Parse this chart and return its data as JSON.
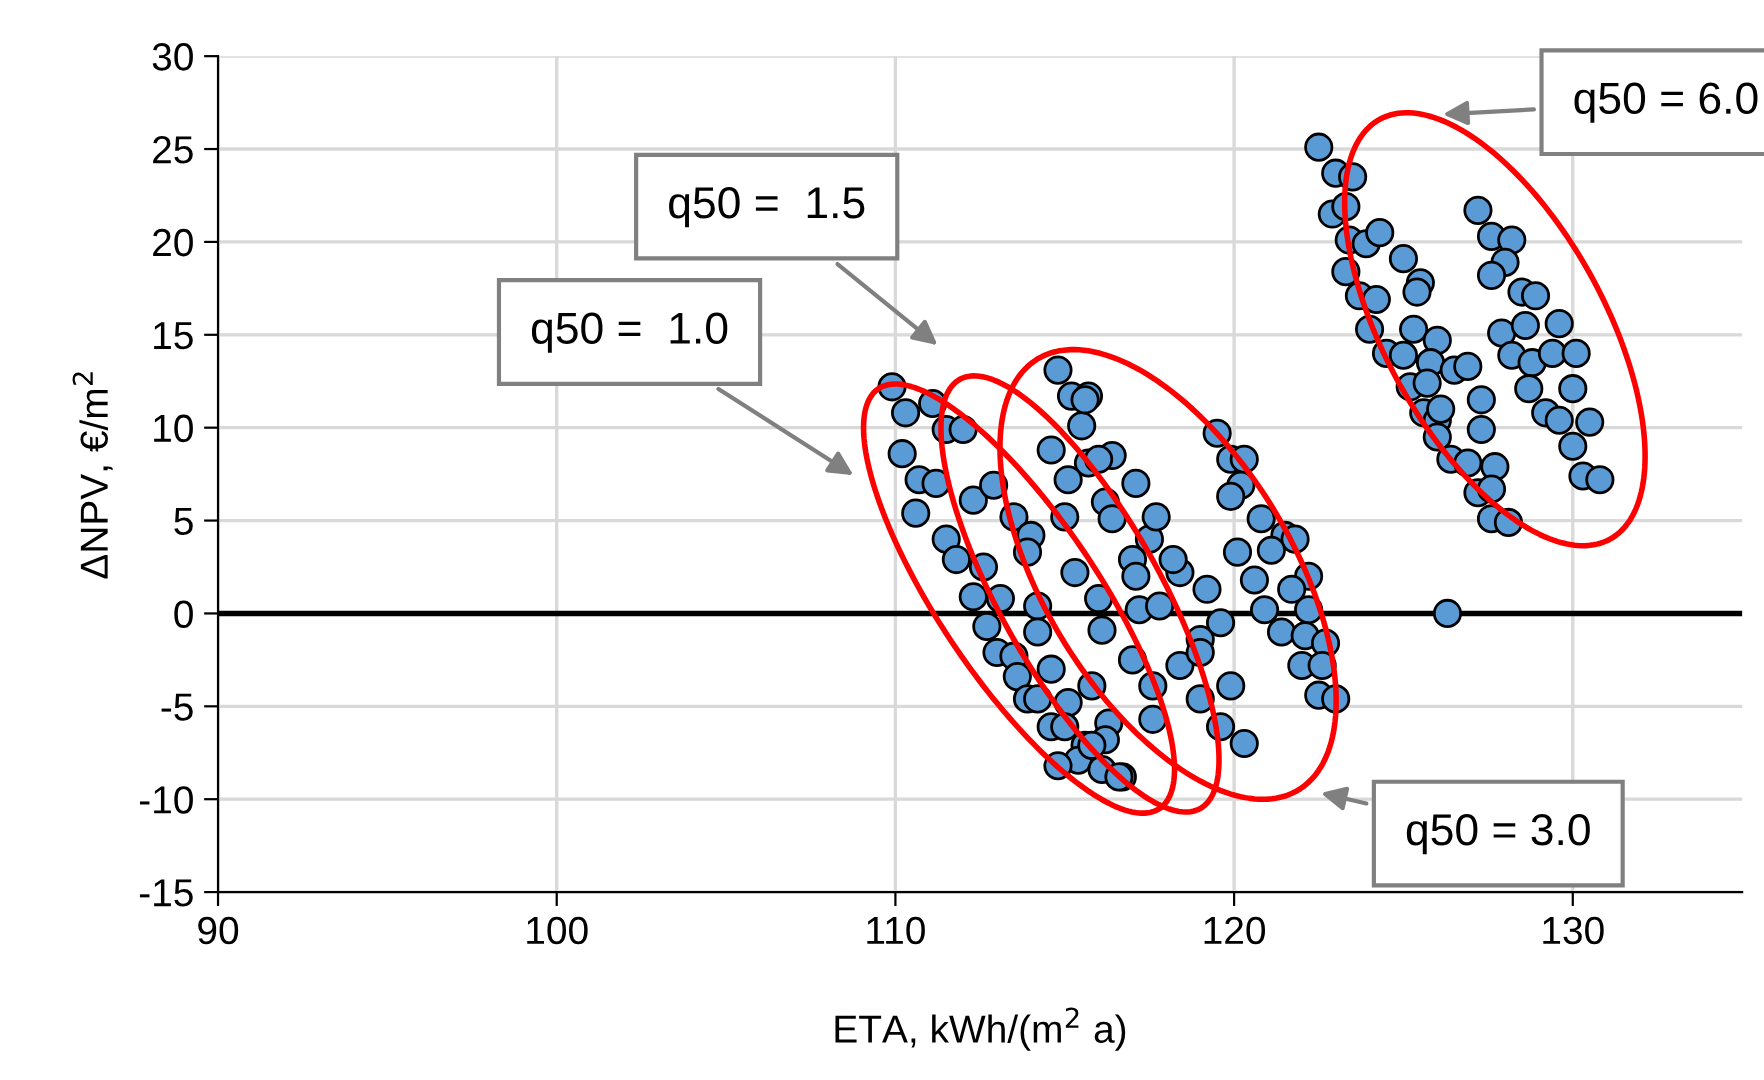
{
  "chart_data": {
    "type": "scatter",
    "xlabel": "ETA, kWh/(m$^{2}$ a)",
    "ylabel": "ΔNPV, €/m$^{2}$",
    "xlim": [
      90,
      135
    ],
    "xticks": [
      90,
      100,
      110,
      120,
      130
    ],
    "ylim": [
      -15,
      30
    ],
    "yticks": [
      -15,
      -10,
      -5,
      0,
      5,
      10,
      15,
      20,
      25,
      30
    ],
    "grid": true,
    "marker": "circle",
    "legend": false,
    "ref_lines": [
      {
        "axis": "y",
        "value": 0,
        "color": "#000000"
      }
    ],
    "annotations": [
      "q50 =  1.5",
      "q50 =  1.0",
      "q50 = 3.0",
      "q50 = 6.0"
    ],
    "series": [
      {
        "color": "#5b9bd5",
        "x": [
          122.5,
          123.0,
          123.5,
          122.9,
          123.3,
          123.4,
          123.9,
          124.3,
          123.3,
          123.7,
          124.2,
          125.0,
          125.5,
          125.4,
          124.0,
          124.5,
          125.0,
          125.3,
          126.0,
          125.8,
          125.2,
          125.7,
          126.5,
          126.9,
          125.6,
          126.0,
          126.1,
          127.3,
          127.3,
          126.0,
          126.4,
          126.9,
          127.7,
          127.2,
          127.6,
          127.6,
          128.1,
          126.3,
          127.2,
          127.6,
          128.2,
          128.0,
          127.6,
          128.5,
          128.9,
          127.9,
          128.6,
          129.6,
          128.2,
          128.8,
          129.4,
          130.1,
          128.7,
          129.2,
          130.0,
          129.6,
          130.5,
          130.0,
          130.3,
          130.8,
          109.9,
          110.3,
          111.1,
          110.2,
          111.5,
          112.0,
          110.7,
          111.2,
          110.6,
          112.3,
          112.9,
          111.5,
          111.8,
          112.6,
          113.5,
          112.3,
          113.1,
          114.0,
          113.9,
          112.7,
          113.0,
          113.5,
          114.2,
          114.2,
          113.6,
          113.9,
          114.2,
          114.6,
          115.1,
          115.8,
          114.6,
          115.0,
          115.6,
          116.3,
          116.2,
          115.4,
          116.1,
          116.7,
          114.8,
          114.8,
          115.2,
          115.7,
          115.5,
          114.6,
          115.7,
          115.1,
          116.4,
          117.1,
          115.0,
          116.2,
          115.3,
          116.4,
          117.5,
          116.0,
          117.0,
          117.2,
          118.4,
          116.1,
          117.0,
          117.6,
          118.4,
          119.0,
          115.6,
          116.0,
          117.7,
          118.2,
          119.2,
          117.1,
          119.6,
          117.8,
          119.0,
          119.9,
          119.0,
          117.6,
          119.6,
          120.3,
          116.6,
          115.8,
          119.5,
          119.9,
          120.3,
          120.2,
          119.9,
          120.8,
          121.5,
          121.8,
          120.1,
          121.1,
          122.2,
          120.6,
          121.7,
          120.9,
          122.2,
          121.4,
          122.1,
          122.7,
          122.0,
          122.6,
          122.5,
          123.0
        ],
        "values": [
          25.1,
          23.7,
          23.5,
          21.5,
          21.9,
          20.1,
          19.9,
          20.5,
          18.4,
          17.1,
          16.9,
          19.1,
          17.8,
          17.3,
          15.3,
          14.0,
          13.9,
          15.3,
          14.7,
          13.5,
          12.2,
          12.4,
          13.1,
          13.3,
          10.8,
          10.4,
          11.0,
          11.5,
          9.9,
          9.5,
          8.3,
          8.1,
          7.9,
          6.5,
          6.7,
          5.1,
          4.9,
          0.0,
          21.7,
          20.3,
          20.1,
          18.9,
          18.2,
          17.3,
          17.1,
          15.1,
          15.5,
          15.6,
          13.9,
          13.5,
          14.0,
          14.0,
          12.1,
          10.8,
          12.1,
          10.4,
          10.3,
          9.0,
          7.4,
          7.2,
          12.2,
          10.8,
          11.3,
          8.6,
          9.9,
          9.9,
          7.2,
          7.0,
          5.4,
          6.1,
          6.9,
          4.0,
          2.9,
          2.5,
          5.2,
          0.9,
          0.8,
          4.2,
          3.3,
          -0.7,
          -2.1,
          -2.3,
          0.4,
          -1.0,
          -3.4,
          -4.6,
          -4.6,
          -3.0,
          -4.8,
          -3.9,
          -6.1,
          -6.1,
          -7.1,
          -5.9,
          -6.8,
          -7.9,
          -8.4,
          -8.8,
          -8.2,
          13.1,
          11.7,
          11.7,
          10.1,
          8.8,
          8.1,
          7.2,
          8.5,
          7.0,
          5.2,
          6.0,
          2.2,
          5.1,
          4.0,
          0.8,
          2.9,
          0.2,
          2.2,
          -0.9,
          -2.5,
          -3.9,
          -2.8,
          -1.4,
          11.5,
          8.3,
          5.2,
          2.9,
          1.3,
          2.0,
          -0.5,
          0.4,
          -2.1,
          -3.9,
          -4.6,
          -5.7,
          -6.1,
          -7.0,
          -8.8,
          -7.1,
          9.7,
          8.3,
          8.3,
          6.9,
          6.3,
          5.1,
          4.2,
          4.0,
          3.3,
          3.4,
          2.0,
          1.8,
          1.3,
          0.2,
          0.2,
          -1.0,
          -1.2,
          -1.6,
          -2.8,
          -2.8,
          -4.4,
          -4.6
        ]
      }
    ]
  }
}
